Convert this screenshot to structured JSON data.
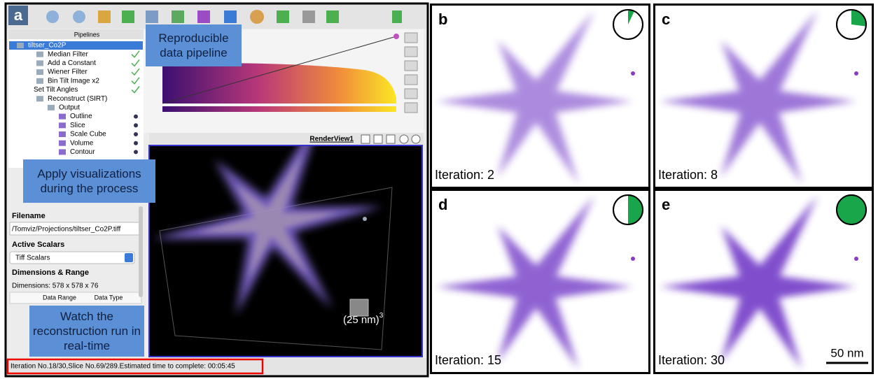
{
  "toolbar_label": "a",
  "pipelines": {
    "title": "Pipelines",
    "items": [
      "tiltser_Co2P",
      "Median Filter",
      "Add a Constant",
      "Wiener Filter",
      "Bin Tilt Image x2",
      "Set Tilt Angles",
      "Reconstruct (SIRT)",
      "Output",
      "Outline",
      "Slice",
      "Scale Cube",
      "Volume",
      "Contour"
    ]
  },
  "callouts": [
    "Reproducible data pipeline",
    "Apply visualizations during the process",
    "Watch the reconstruction run in real-time"
  ],
  "properties": {
    "filename_label": "Filename",
    "filename": "/Tomviz/Projections/tiltser_Co2P.tiff",
    "active_scalars_label": "Active Scalars",
    "active_scalars": "Tiff Scalars",
    "dimensions_label": "Dimensions & Range",
    "dimensions": "Dimensions: 578 x 578 x 76",
    "columns": [
      "Data Range",
      "Data Type"
    ]
  },
  "render_view": {
    "title": "RenderView1",
    "cube_label": "(25 nm)",
    "cube_exponent": "3"
  },
  "status": "Iteration No.18/30,Slice No.69/289.Estimated time to complete: 00:05:45",
  "panels": [
    {
      "letter": "b",
      "label": "Iteration: 2",
      "progress": 0.07
    },
    {
      "letter": "c",
      "label": "Iteration: 8",
      "progress": 0.27
    },
    {
      "letter": "d",
      "label": "Iteration: 15",
      "progress": 0.5
    },
    {
      "letter": "e",
      "label": "Iteration: 30",
      "progress": 1
    }
  ],
  "scale_bar": "50 nm"
}
